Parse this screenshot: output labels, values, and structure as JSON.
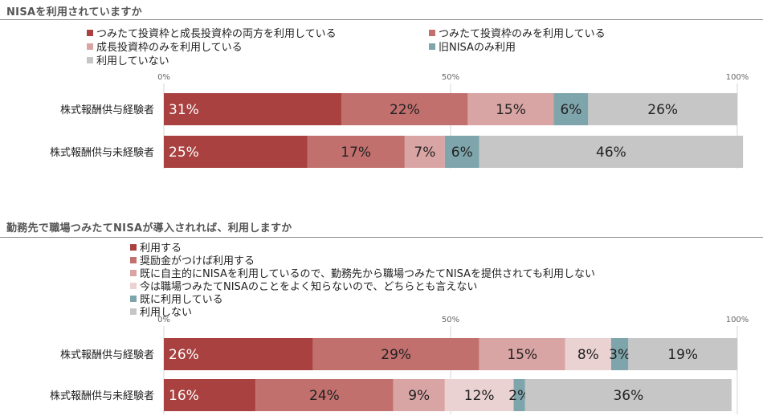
{
  "colors": {
    "both": "#a8413f",
    "tsumitate_only": "#c1706e",
    "growth_only": "#d9a5a4",
    "pale": "#ebd2d2",
    "old_nisa": "#7ea5ab",
    "not_using": "#c6c6c6"
  },
  "chart_data": [
    {
      "type": "bar",
      "orientation": "horizontal-stacked-100",
      "title": "NISAを利用されていますか",
      "categories": [
        "株式報酬供与経験者",
        "株式報酬供与未経験者"
      ],
      "xlim": [
        0,
        100
      ],
      "xticks": [
        "0%",
        "50%",
        "100%"
      ],
      "series": [
        {
          "name": "つみたて投資枠と成長投資枠の両方を利用している",
          "color": "#a8413f",
          "values": [
            31,
            25
          ],
          "labels": [
            "31%",
            "25%"
          ]
        },
        {
          "name": "つみたて投資枠のみを利用している",
          "color": "#c1706e",
          "values": [
            22,
            17
          ],
          "labels": [
            "22%",
            "17%"
          ]
        },
        {
          "name": "成長投資枠のみを利用している",
          "color": "#d9a5a4",
          "values": [
            15,
            7
          ],
          "labels": [
            "15%",
            "7%"
          ]
        },
        {
          "name": "旧NISAのみ利用",
          "color": "#7ea5ab",
          "values": [
            6,
            6
          ],
          "labels": [
            "6%",
            "6%"
          ]
        },
        {
          "name": "利用していない",
          "color": "#c6c6c6",
          "values": [
            26,
            46
          ],
          "labels": [
            "26%",
            "46%"
          ]
        }
      ]
    },
    {
      "type": "bar",
      "orientation": "horizontal-stacked-100",
      "title": "勤務先で職場つみたてNISAが導入されれば、利用しますか",
      "categories": [
        "株式報酬供与経験者",
        "株式報酬供与未経験者"
      ],
      "xlim": [
        0,
        100
      ],
      "xticks": [
        "0%",
        "50%",
        "100%"
      ],
      "series": [
        {
          "name": "利用する",
          "color": "#a8413f",
          "values": [
            26,
            16
          ],
          "labels": [
            "26%",
            "16%"
          ]
        },
        {
          "name": "奨励金がつけば利用する",
          "color": "#c1706e",
          "values": [
            29,
            24
          ],
          "labels": [
            "29%",
            "24%"
          ]
        },
        {
          "name": "既に自主的にNISAを利用しているので、勤務先から職場つみたてNISAを提供されても利用しない",
          "color": "#d9a5a4",
          "values": [
            15,
            9
          ],
          "labels": [
            "15%",
            "9%"
          ]
        },
        {
          "name": "今は職場つみたてNISAのことをよく知らないので、どちらとも言えない",
          "color": "#ebd2d2",
          "values": [
            8,
            12
          ],
          "labels": [
            "8%",
            "12%"
          ]
        },
        {
          "name": "既に利用している",
          "color": "#7ea5ab",
          "values": [
            3,
            2
          ],
          "labels": [
            "3%",
            "2%"
          ]
        },
        {
          "name": "利用しない",
          "color": "#c6c6c6",
          "values": [
            19,
            36
          ],
          "labels": [
            "19%",
            "36%"
          ]
        }
      ]
    }
  ]
}
